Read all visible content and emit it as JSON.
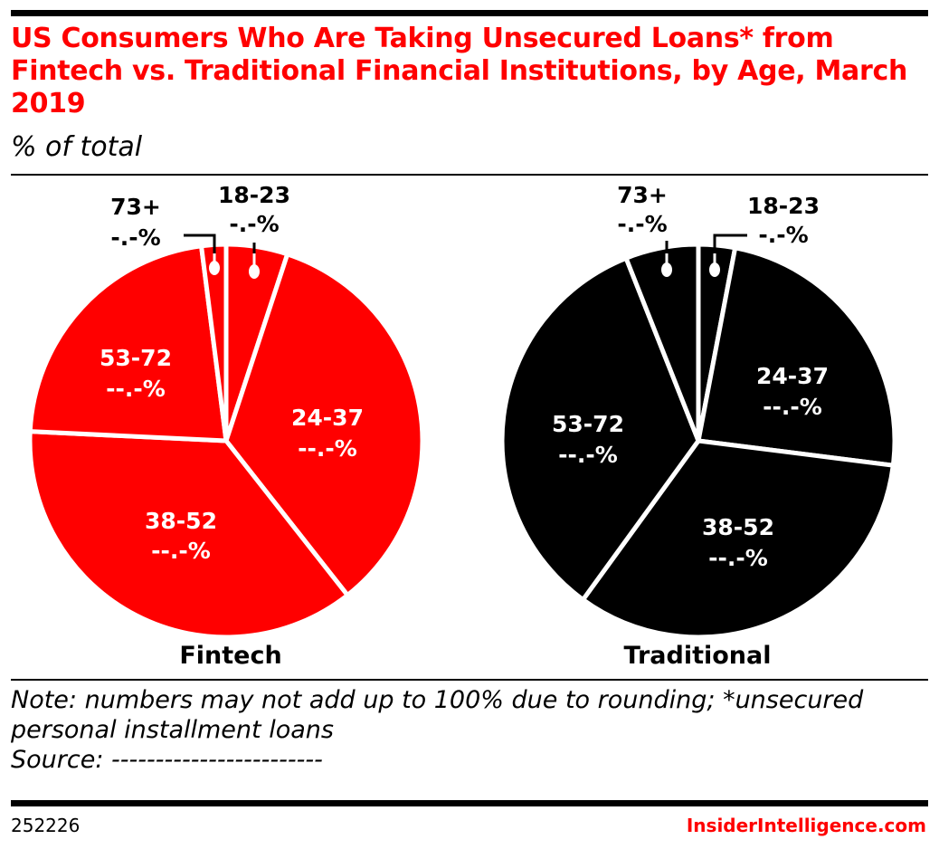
{
  "title": "US Consumers Who Are Taking Unsecured Loans* from Fintech vs. Traditional Financial Institutions, by Age, March 2019",
  "subtitle": "% of total",
  "note": "Note: numbers may not add up to 100% due to rounding; *unsecured personal installment loans",
  "source": "Source: ------------------------",
  "chart_id": "252226",
  "brand": "InsiderIntelligence.com",
  "chart_data": [
    {
      "type": "pie",
      "name": "Fintech",
      "color": "#ff0000",
      "categories": [
        "18-23",
        "24-37",
        "38-52",
        "53-72",
        "73+"
      ],
      "values": [
        5,
        34,
        36,
        22,
        2
      ],
      "value_labels": [
        "-.-%",
        "--.-%",
        "--.-%",
        "--.-%",
        "-.-%"
      ]
    },
    {
      "type": "pie",
      "name": "Traditional",
      "color": "#000000",
      "categories": [
        "18-23",
        "24-37",
        "38-52",
        "53-72",
        "73+"
      ],
      "values": [
        3,
        24,
        33,
        34,
        6
      ],
      "value_labels": [
        "-.-%",
        "--.-%",
        "--.-%",
        "--.-%",
        "-.-%"
      ]
    }
  ]
}
